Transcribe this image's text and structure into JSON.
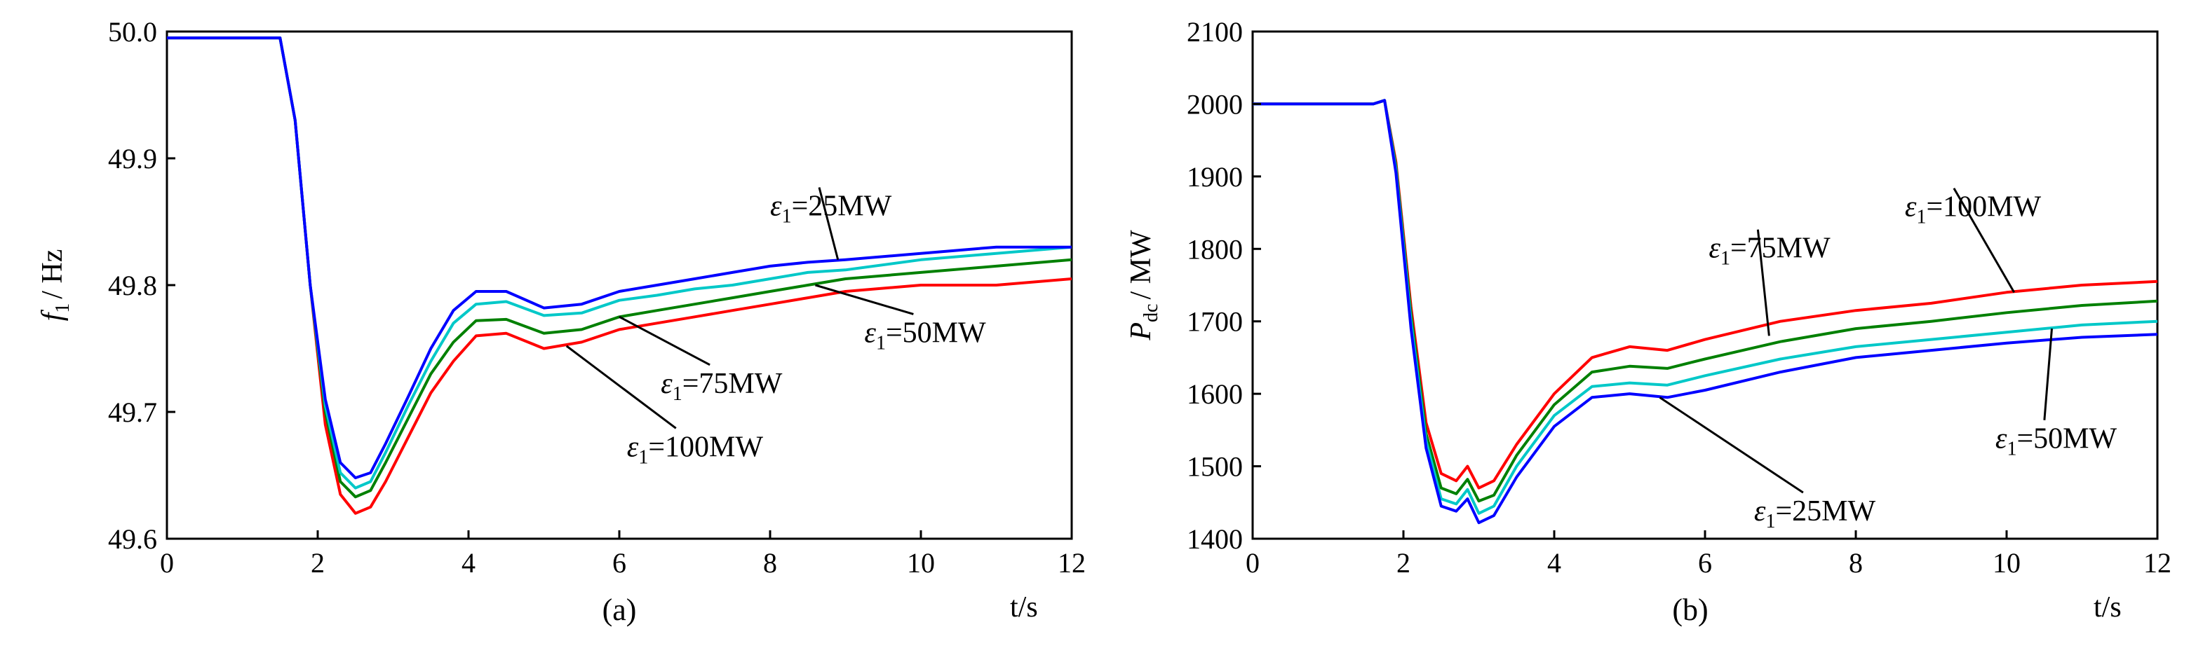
{
  "chart_data": [
    {
      "type": "line",
      "panel_label": "(a)",
      "ylabel_main": "f",
      "ylabel_sub": "1",
      "ylabel_unit": "/ Hz",
      "xlabel": "t/s",
      "xlim": [
        0,
        12
      ],
      "ylim": [
        49.6,
        50.0
      ],
      "xticks": [
        "0",
        "2",
        "4",
        "6",
        "8",
        "10",
        "12"
      ],
      "yticks": [
        "49.6",
        "49.7",
        "49.8",
        "49.9",
        "50.0"
      ],
      "grid": false,
      "series": [
        {
          "name": "ε1=100MW",
          "color": "#ff0000",
          "x": [
            0,
            1.5,
            1.7,
            1.9,
            2.1,
            2.3,
            2.5,
            2.7,
            2.9,
            3.2,
            3.5,
            3.8,
            4.1,
            4.5,
            5.0,
            5.5,
            6.0,
            6.5,
            7.0,
            7.5,
            8.0,
            8.5,
            9.0,
            10.0,
            11.0,
            12.0
          ],
          "y": [
            49.995,
            49.995,
            49.93,
            49.8,
            49.69,
            49.635,
            49.62,
            49.625,
            49.645,
            49.68,
            49.715,
            49.74,
            49.76,
            49.762,
            49.75,
            49.755,
            49.765,
            49.77,
            49.775,
            49.78,
            49.785,
            49.79,
            49.795,
            49.8,
            49.8,
            49.805
          ]
        },
        {
          "name": "ε1=75MW",
          "color": "#008000",
          "x": [
            0,
            1.5,
            1.7,
            1.9,
            2.1,
            2.3,
            2.5,
            2.7,
            2.9,
            3.2,
            3.5,
            3.8,
            4.1,
            4.5,
            5.0,
            5.5,
            6.0,
            6.5,
            7.0,
            7.5,
            8.0,
            8.5,
            9.0,
            10.0,
            11.0,
            12.0
          ],
          "y": [
            49.995,
            49.995,
            49.93,
            49.8,
            49.7,
            49.645,
            49.633,
            49.638,
            49.66,
            49.695,
            49.73,
            49.755,
            49.772,
            49.773,
            49.762,
            49.765,
            49.775,
            49.78,
            49.785,
            49.79,
            49.795,
            49.8,
            49.805,
            49.81,
            49.815,
            49.82
          ]
        },
        {
          "name": "ε1=50MW",
          "color": "#00c8c8",
          "x": [
            0,
            1.5,
            1.7,
            1.9,
            2.1,
            2.3,
            2.5,
            2.7,
            2.9,
            3.2,
            3.5,
            3.8,
            4.1,
            4.5,
            5.0,
            5.5,
            6.0,
            6.5,
            7.0,
            7.5,
            8.0,
            8.5,
            9.0,
            10.0,
            11.0,
            12.0
          ],
          "y": [
            49.995,
            49.995,
            49.93,
            49.8,
            49.705,
            49.652,
            49.64,
            49.645,
            49.668,
            49.705,
            49.74,
            49.77,
            49.785,
            49.787,
            49.776,
            49.778,
            49.788,
            49.792,
            49.797,
            49.8,
            49.805,
            49.81,
            49.812,
            49.82,
            49.825,
            49.83
          ]
        },
        {
          "name": "ε1=25MW",
          "color": "#0000ff",
          "x": [
            0,
            1.5,
            1.7,
            1.9,
            2.1,
            2.3,
            2.5,
            2.7,
            2.9,
            3.2,
            3.5,
            3.8,
            4.1,
            4.5,
            5.0,
            5.5,
            6.0,
            6.5,
            7.0,
            7.5,
            8.0,
            8.5,
            9.0,
            10.0,
            11.0,
            12.0
          ],
          "y": [
            49.995,
            49.995,
            49.93,
            49.8,
            49.71,
            49.66,
            49.648,
            49.652,
            49.675,
            49.712,
            49.75,
            49.78,
            49.795,
            49.795,
            49.782,
            49.785,
            49.795,
            49.8,
            49.805,
            49.81,
            49.815,
            49.818,
            49.82,
            49.825,
            49.83,
            49.83
          ]
        }
      ],
      "annotations": [
        {
          "label": "ε",
          "sub": "1",
          "rest": "=25MW",
          "x": 8.0,
          "y": 49.855,
          "line_to": [
            8.9,
            49.82
          ]
        },
        {
          "label": "ε",
          "sub": "1",
          "rest": "=50MW",
          "x": 9.25,
          "y": 49.755,
          "line_to": [
            8.6,
            49.8
          ]
        },
        {
          "label": "ε",
          "sub": "1",
          "rest": "=75MW",
          "x": 6.55,
          "y": 49.715,
          "line_to": [
            6.0,
            49.775
          ]
        },
        {
          "label": "ε",
          "sub": "1",
          "rest": "=100MW",
          "x": 6.1,
          "y": 49.665,
          "line_to": [
            5.3,
            49.752
          ]
        }
      ]
    },
    {
      "type": "line",
      "panel_label": "(b)",
      "ylabel_main": "P",
      "ylabel_sub": "dc",
      "ylabel_unit": "/ MW",
      "xlabel": "t/s",
      "xlim": [
        0,
        12
      ],
      "ylim": [
        1400,
        2100
      ],
      "xticks": [
        "0",
        "2",
        "4",
        "6",
        "8",
        "10",
        "12"
      ],
      "yticks": [
        "1400",
        "1500",
        "1600",
        "1700",
        "1800",
        "1900",
        "2000",
        "2100"
      ],
      "grid": false,
      "series": [
        {
          "name": "ε1=100MW",
          "color": "#ff0000",
          "x": [
            0,
            1.6,
            1.75,
            1.9,
            2.1,
            2.3,
            2.5,
            2.7,
            2.85,
            3.0,
            3.2,
            3.5,
            4.0,
            4.5,
            5.0,
            5.5,
            6.0,
            7.0,
            8.0,
            9.0,
            10.0,
            11.0,
            12.0
          ],
          "y": [
            2000,
            2000,
            2005,
            1920,
            1720,
            1560,
            1490,
            1480,
            1500,
            1470,
            1480,
            1530,
            1600,
            1650,
            1665,
            1660,
            1675,
            1700,
            1715,
            1725,
            1740,
            1750,
            1755
          ]
        },
        {
          "name": "ε1=75MW",
          "color": "#008000",
          "x": [
            0,
            1.6,
            1.75,
            1.9,
            2.1,
            2.3,
            2.5,
            2.7,
            2.85,
            3.0,
            3.2,
            3.5,
            4.0,
            4.5,
            5.0,
            5.5,
            6.0,
            7.0,
            8.0,
            9.0,
            10.0,
            11.0,
            12.0
          ],
          "y": [
            2000,
            2000,
            2005,
            1915,
            1710,
            1545,
            1470,
            1462,
            1482,
            1452,
            1460,
            1515,
            1585,
            1630,
            1638,
            1635,
            1648,
            1672,
            1690,
            1700,
            1712,
            1722,
            1728
          ]
        },
        {
          "name": "ε1=50MW",
          "color": "#00c8c8",
          "x": [
            0,
            1.6,
            1.75,
            1.9,
            2.1,
            2.3,
            2.5,
            2.7,
            2.85,
            3.0,
            3.2,
            3.5,
            4.0,
            4.5,
            5.0,
            5.5,
            6.0,
            7.0,
            8.0,
            9.0,
            10.0,
            11.0,
            12.0
          ],
          "y": [
            2000,
            2000,
            2005,
            1910,
            1700,
            1535,
            1455,
            1448,
            1468,
            1435,
            1445,
            1500,
            1570,
            1610,
            1615,
            1612,
            1625,
            1648,
            1665,
            1675,
            1685,
            1695,
            1700
          ]
        },
        {
          "name": "ε1=25MW",
          "color": "#0000ff",
          "x": [
            0,
            1.6,
            1.75,
            1.9,
            2.1,
            2.3,
            2.5,
            2.7,
            2.85,
            3.0,
            3.2,
            3.5,
            4.0,
            4.5,
            5.0,
            5.5,
            6.0,
            7.0,
            8.0,
            9.0,
            10.0,
            11.0,
            12.0
          ],
          "y": [
            2000,
            2000,
            2005,
            1905,
            1690,
            1525,
            1445,
            1438,
            1455,
            1422,
            1432,
            1485,
            1555,
            1595,
            1600,
            1595,
            1605,
            1630,
            1650,
            1660,
            1670,
            1678,
            1682
          ]
        }
      ],
      "annotations": [
        {
          "label": "ε",
          "sub": "1",
          "rest": "=75MW",
          "x": 6.05,
          "y": 1788,
          "line_to": [
            6.85,
            1680
          ]
        },
        {
          "label": "ε",
          "sub": "1",
          "rest": "=100MW",
          "x": 8.65,
          "y": 1845,
          "line_to": [
            10.1,
            1740
          ]
        },
        {
          "label": "ε",
          "sub": "1",
          "rest": "=50MW",
          "x": 9.85,
          "y": 1525,
          "line_to": [
            10.6,
            1690
          ]
        },
        {
          "label": "ε",
          "sub": "1",
          "rest": "=25MW",
          "x": 6.65,
          "y": 1425,
          "line_to": [
            5.4,
            1595
          ]
        }
      ]
    }
  ]
}
